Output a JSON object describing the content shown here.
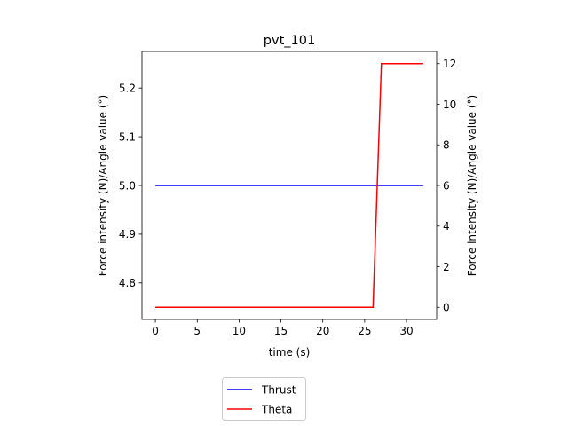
{
  "chart_data": {
    "type": "line",
    "title": "pvt_101",
    "xlabel": "time (s)",
    "ylabel_left": "Force intensity (N)/Angle value (°)",
    "ylabel_right": "Force intensity (N)/Angle value (°)",
    "xlim": [
      -1.6,
      33.6
    ],
    "ylim_left": [
      4.725,
      5.275
    ],
    "ylim_right": [
      -0.6,
      12.6
    ],
    "x_ticks": [
      "0",
      "5",
      "10",
      "15",
      "20",
      "25",
      "30"
    ],
    "y_left_ticks": [
      "4.8",
      "4.9",
      "5.0",
      "5.1",
      "5.2"
    ],
    "y_right_ticks": [
      "0",
      "2",
      "4",
      "6",
      "8",
      "10",
      "12"
    ],
    "grid": false,
    "legend_position": "below the plot, left of center",
    "series": [
      {
        "name": "Thrust",
        "axis": "left",
        "color": "#0000ff",
        "x": [
          0,
          32
        ],
        "y": [
          5.0,
          5.0
        ]
      },
      {
        "name": "Theta",
        "axis": "right",
        "color": "#ff0000",
        "x": [
          0,
          26,
          27,
          32
        ],
        "y": [
          0,
          0,
          12,
          12
        ]
      }
    ]
  }
}
